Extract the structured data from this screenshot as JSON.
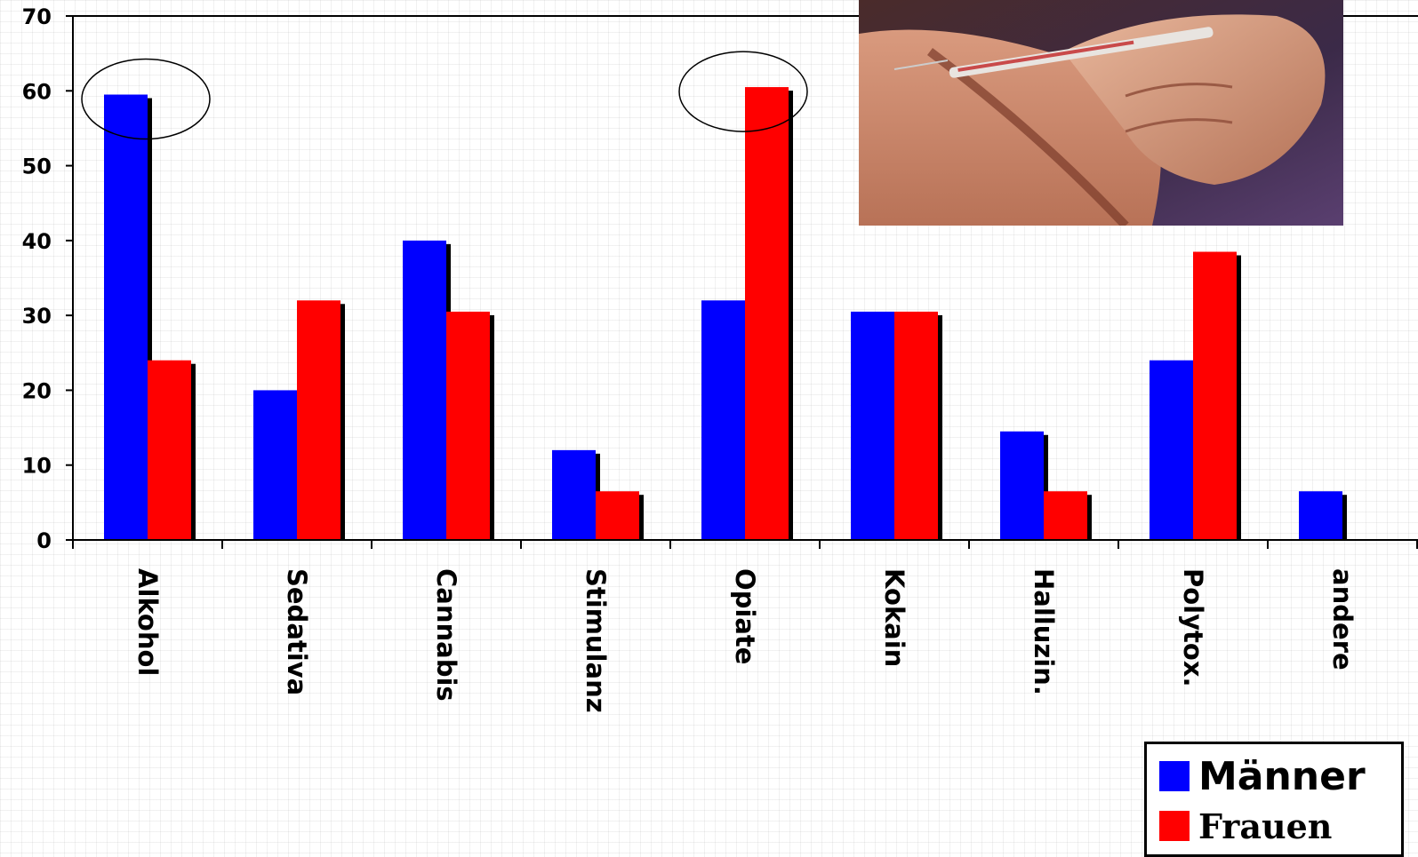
{
  "colors": {
    "maenner": "#0000ff",
    "frauen": "#ff0000",
    "shadow": "#000000"
  },
  "legend": {
    "maenner_label": "Männer",
    "frauen_label": "Frauen",
    "position": "bottom-right"
  },
  "photo": {
    "icon": "syringe-injection-photo"
  },
  "highlights": [
    "Alkohol",
    "Opiate"
  ],
  "chart_data": {
    "type": "bar",
    "title": "",
    "xlabel": "",
    "ylabel": "",
    "ylim": [
      0,
      70
    ],
    "yticks": [
      0,
      10,
      20,
      30,
      40,
      50,
      60,
      70
    ],
    "grid": false,
    "categories": [
      "Alkohol",
      "Sedativa",
      "Cannabis",
      "Stimulanz",
      "Opiate",
      "Kokain",
      "Halluzin.",
      "Polytox.",
      "andere"
    ],
    "series": [
      {
        "name": "Männer",
        "values": [
          59.5,
          20,
          40,
          12,
          32,
          30.5,
          14.5,
          24,
          6.5
        ]
      },
      {
        "name": "Frauen",
        "values": [
          24,
          32,
          30.5,
          6.5,
          60.5,
          30.5,
          6.5,
          38.5,
          0
        ]
      }
    ]
  }
}
